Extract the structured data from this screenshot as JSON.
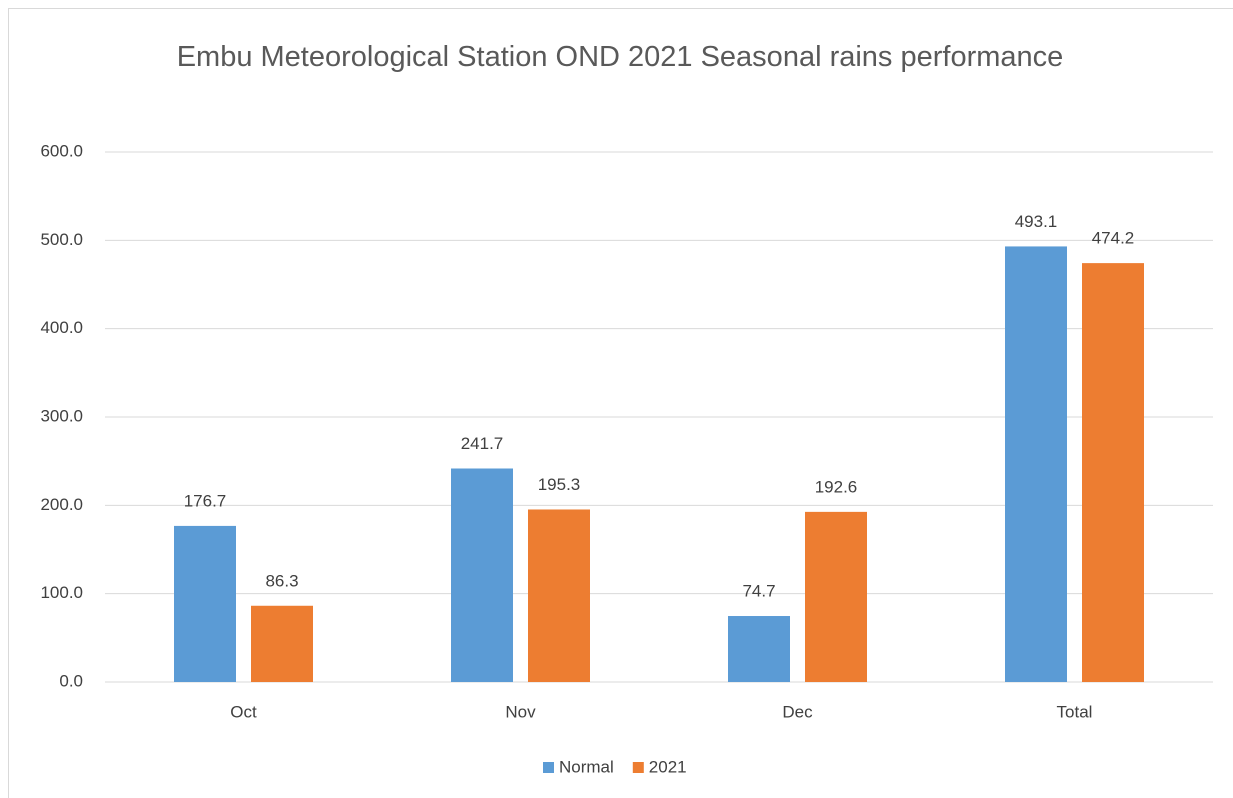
{
  "chart_data": {
    "type": "bar",
    "title": "Embu Meteorological Station OND 2021 Seasonal rains performance",
    "categories": [
      "Oct",
      "Nov",
      "Dec",
      "Total"
    ],
    "series": [
      {
        "name": "Normal",
        "color": "#5b9bd5",
        "values": [
          176.7,
          241.7,
          74.7,
          493.1
        ]
      },
      {
        "name": "2021",
        "color": "#ed7d31",
        "values": [
          86.3,
          195.3,
          192.6,
          474.2
        ]
      }
    ],
    "ylim": [
      0,
      600
    ],
    "yticks": [
      {
        "value": 0,
        "label": "0.0"
      },
      {
        "value": 100,
        "label": "100.0"
      },
      {
        "value": 200,
        "label": "200.0"
      },
      {
        "value": 300,
        "label": "300.0"
      },
      {
        "value": 400,
        "label": "400.0"
      },
      {
        "value": 500,
        "label": "500.0"
      },
      {
        "value": 600,
        "label": "600.0"
      }
    ],
    "grid": true,
    "legend": "bottom"
  }
}
